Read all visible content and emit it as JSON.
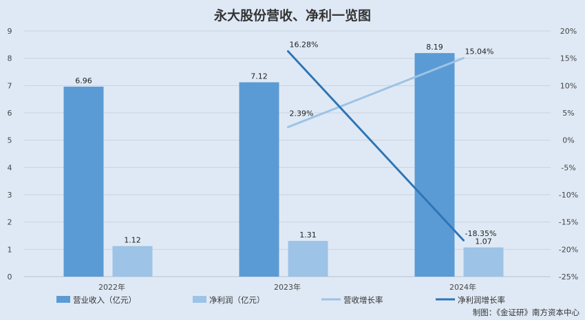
{
  "chart_data": {
    "type": "bar",
    "title": "永大股份营收、净利一览图",
    "categories": [
      "2022年",
      "2023年",
      "2024年"
    ],
    "bar_series": [
      {
        "name": "营业收入（亿元）",
        "values": [
          6.96,
          7.12,
          8.19
        ],
        "labels": [
          "6.96",
          "7.12",
          "8.19"
        ],
        "color": "#5b9bd5"
      },
      {
        "name": "净利润（亿元）",
        "values": [
          1.12,
          1.31,
          1.07
        ],
        "labels": [
          "1.12",
          "1.31",
          "1.07"
        ],
        "color": "#9dc3e6"
      }
    ],
    "line_series": [
      {
        "name": "营收增长率",
        "x": [
          "2023年",
          "2024年"
        ],
        "values": [
          2.39,
          15.04
        ],
        "labels": [
          "2.39%",
          "15.04%"
        ],
        "color": "#9dc3e6"
      },
      {
        "name": "净利润增长率",
        "x": [
          "2023年",
          "2024年"
        ],
        "values": [
          16.28,
          -18.35
        ],
        "labels": [
          "16.28%",
          "-18.35%"
        ],
        "color": "#2e75b6"
      }
    ],
    "y_left": {
      "min": 0,
      "max": 9,
      "ticks": [
        "0",
        "1",
        "2",
        "3",
        "4",
        "5",
        "6",
        "7",
        "8",
        "9"
      ]
    },
    "y_right": {
      "min": -25,
      "max": 20,
      "ticks": [
        "-25%",
        "-20%",
        "-15%",
        "-10%",
        "-5%",
        "0%",
        "5%",
        "10%",
        "15%",
        "20%"
      ]
    },
    "grid": true,
    "legend_position": "bottom"
  },
  "credit": "制图：《金证研》南方资本中心"
}
